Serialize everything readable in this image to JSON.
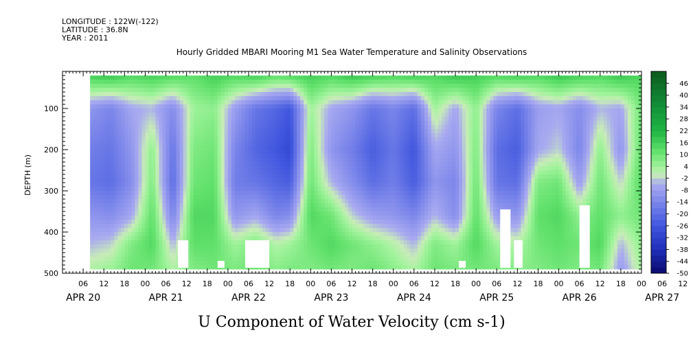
{
  "header": {
    "longitude": "LONGITUDE : 122W(-122)",
    "latitude": "LATITUDE : 36.8N",
    "year": "YEAR : 2011"
  },
  "chart_data": {
    "type": "heatmap",
    "title": "Hourly Gridded MBARI Mooring M1 Sea Water Temperature and Salinity Observations",
    "caption": "U Component of Water Velocity (cm s-1)",
    "ylabel": "DEPTH (m)",
    "y_ticks": [
      100,
      200,
      300,
      400,
      500
    ],
    "ylim": [
      500,
      10
    ],
    "y_inverted": true,
    "hour_ticks": [
      "06",
      "12",
      "18",
      "00",
      "06",
      "12",
      "18",
      "00",
      "06",
      "12",
      "18",
      "00",
      "06",
      "12",
      "18",
      "00",
      "06",
      "12",
      "18",
      "00",
      "06",
      "12",
      "18",
      "00",
      "06",
      "12",
      "18",
      "00",
      "06",
      "12",
      "18",
      "00",
      "06",
      "12",
      "18",
      "00",
      "06",
      "12",
      "18",
      "00",
      "06",
      "12",
      "18",
      "00",
      "06",
      "12",
      "18",
      "00"
    ],
    "date_labels": [
      "APR 20",
      "APR 21",
      "APR 22",
      "APR 23",
      "APR 24",
      "APR 25",
      "APR 26",
      "APR 27"
    ],
    "date_label_days": [
      0,
      1,
      2,
      3,
      4,
      5,
      6,
      7
    ],
    "x_start_hour": 0,
    "x_end_hour": 168,
    "data_start_hour": 8,
    "colorbar": {
      "ticks": [
        "46",
        "40",
        "34",
        "28",
        "22",
        "16",
        "10",
        "4",
        "-2",
        "-8",
        "-14",
        "-20",
        "-26",
        "-32",
        "-38",
        "-44",
        "-50"
      ],
      "range": [
        -50,
        52
      ],
      "colors": {
        "dark_green": "#0b5a1e",
        "green": "#1fb544",
        "light_green": "#8ff08c",
        "lavender": "#a8a8ee",
        "blue": "#3a4fd8",
        "dark_blue": "#0a0a6e"
      }
    },
    "profiles": [
      {
        "hour": 8,
        "values": [
          16,
          -10,
          -16,
          -18,
          -10,
          -4,
          2
        ]
      },
      {
        "hour": 14,
        "values": [
          18,
          -14,
          -18,
          -20,
          -12,
          -2,
          4
        ]
      },
      {
        "hour": 20,
        "values": [
          14,
          -6,
          -10,
          -12,
          -6,
          8,
          10
        ]
      },
      {
        "hour": 26,
        "values": [
          16,
          -4,
          6,
          8,
          12,
          14,
          10
        ]
      },
      {
        "hour": 32,
        "values": [
          14,
          -12,
          -18,
          -20,
          -14,
          -4,
          2
        ]
      },
      {
        "hour": 38,
        "values": [
          12,
          4,
          8,
          10,
          14,
          12,
          8
        ]
      },
      {
        "hour": 44,
        "values": [
          16,
          6,
          10,
          12,
          14,
          12,
          10
        ]
      },
      {
        "hour": 50,
        "values": [
          14,
          -8,
          -14,
          -16,
          -10,
          4,
          8
        ]
      },
      {
        "hour": 56,
        "values": [
          16,
          -18,
          -22,
          -18,
          -6,
          8,
          10
        ]
      },
      {
        "hour": 62,
        "values": [
          12,
          -22,
          -26,
          -22,
          -14,
          2,
          6
        ]
      },
      {
        "hour": 66,
        "values": [
          14,
          -26,
          -30,
          -24,
          -12,
          4,
          8
        ]
      },
      {
        "hour": 72,
        "values": [
          16,
          4,
          8,
          10,
          14,
          10,
          8
        ]
      },
      {
        "hour": 78,
        "values": [
          14,
          -6,
          -10,
          -4,
          10,
          14,
          10
        ]
      },
      {
        "hour": 84,
        "values": [
          18,
          -10,
          -16,
          -12,
          -2,
          10,
          8
        ]
      },
      {
        "hour": 90,
        "values": [
          16,
          -18,
          -24,
          -20,
          -8,
          6,
          10
        ]
      },
      {
        "hour": 96,
        "values": [
          14,
          -14,
          -18,
          -16,
          -10,
          2,
          6
        ]
      },
      {
        "hour": 102,
        "values": [
          16,
          -20,
          -26,
          -24,
          -14,
          -4,
          2
        ]
      },
      {
        "hour": 108,
        "values": [
          14,
          4,
          -6,
          -10,
          -4,
          8,
          10
        ]
      },
      {
        "hour": 114,
        "values": [
          18,
          -6,
          -10,
          -14,
          -12,
          4,
          8
        ]
      },
      {
        "hour": 120,
        "values": [
          16,
          6,
          8,
          10,
          12,
          14,
          10
        ]
      },
      {
        "hour": 126,
        "values": [
          14,
          -14,
          -20,
          -18,
          -8,
          4,
          8
        ]
      },
      {
        "hour": 132,
        "values": [
          16,
          -20,
          -24,
          -20,
          -10,
          2,
          6
        ]
      },
      {
        "hour": 138,
        "values": [
          14,
          -8,
          -6,
          8,
          12,
          10,
          8
        ]
      },
      {
        "hour": 144,
        "values": [
          18,
          -6,
          -2,
          10,
          14,
          12,
          10
        ]
      },
      {
        "hour": 150,
        "values": [
          16,
          -12,
          -14,
          -8,
          6,
          10,
          8
        ]
      },
      {
        "hour": 156,
        "values": [
          14,
          -4,
          6,
          10,
          12,
          14,
          10
        ]
      },
      {
        "hour": 162,
        "values": [
          18,
          -6,
          -10,
          -2,
          6,
          -4,
          -8
        ]
      },
      {
        "hour": 168,
        "values": [
          14,
          10,
          12,
          14,
          10,
          6,
          4
        ]
      }
    ],
    "profile_depths": [
      20,
      100,
      200,
      280,
      360,
      430,
      485
    ],
    "missing_blocks": [
      {
        "hour_start": 33.5,
        "hour_end": 36.5,
        "depth_start": 420
      },
      {
        "hour_start": 45,
        "hour_end": 47,
        "depth_start": 470
      },
      {
        "hour_start": 53,
        "hour_end": 60,
        "depth_start": 420
      },
      {
        "hour_start": 115,
        "hour_end": 117,
        "depth_start": 470
      },
      {
        "hour_start": 127,
        "hour_end": 130,
        "depth_start": 345
      },
      {
        "hour_start": 131,
        "hour_end": 133.5,
        "depth_start": 420
      },
      {
        "hour_start": 150,
        "hour_end": 153,
        "depth_start": 335
      }
    ]
  }
}
